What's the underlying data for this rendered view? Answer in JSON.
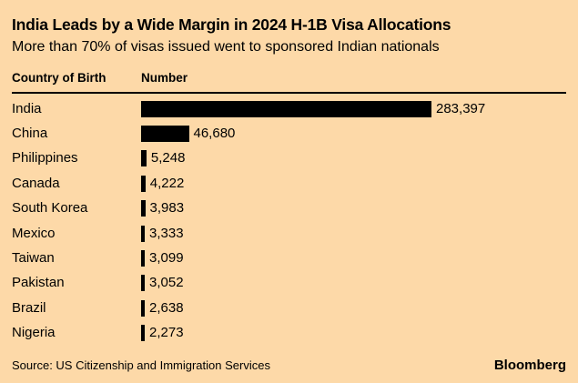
{
  "title": "India Leads by a Wide Margin in 2024 H-1B Visa Allocations",
  "subtitle": "More than 70% of visas issued went to sponsored Indian nationals",
  "table": {
    "col1_header": "Country of Birth",
    "col2_header": "Number"
  },
  "chart_data": {
    "type": "bar",
    "orientation": "horizontal",
    "title": "India Leads by a Wide Margin in 2024 H-1B Visa Allocations",
    "subtitle": "More than 70% of visas issued went to sponsored Indian nationals",
    "xlabel": "Number",
    "ylabel": "Country of Birth",
    "xlim": [
      0,
      283397
    ],
    "grid": false,
    "legend": false,
    "categories": [
      "India",
      "China",
      "Philippines",
      "Canada",
      "South Korea",
      "Mexico",
      "Taiwan",
      "Pakistan",
      "Brazil",
      "Nigeria"
    ],
    "values": [
      283397,
      46680,
      5248,
      4222,
      3983,
      3333,
      3099,
      3052,
      2638,
      2273
    ],
    "value_labels": [
      "283,397",
      "46,680",
      "5,248",
      "4,222",
      "3,983",
      "3,333",
      "3,099",
      "3,052",
      "2,638",
      "2,273"
    ],
    "bar_color": "#000000"
  },
  "footer": {
    "source": "Source: US Citizenship and Immigration Services",
    "brand": "Bloomberg"
  },
  "colors": {
    "background": "#FDD9A8",
    "text": "#000000",
    "bar": "#000000",
    "rule": "#000000"
  }
}
